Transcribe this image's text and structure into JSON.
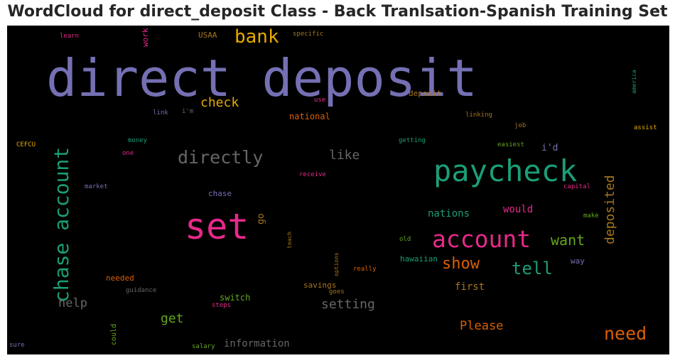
{
  "title": "WordCloud for direct_deposit Class - Back Tranlsation-Spanish Training Set",
  "chart_data": {
    "type": "wordcloud",
    "background": "#000000",
    "words": [
      {
        "text": "direct deposit",
        "color": "#7570b3",
        "vertical": false
      },
      {
        "text": "set",
        "color": "#e7298a",
        "vertical": false
      },
      {
        "text": "paycheck",
        "color": "#1b9e77",
        "vertical": false
      },
      {
        "text": "account",
        "color": "#e7298a",
        "vertical": false
      },
      {
        "text": "chase account",
        "color": "#1b9e77",
        "vertical": true
      },
      {
        "text": "bank",
        "color": "#e6ab02",
        "vertical": false
      },
      {
        "text": "directly",
        "color": "#666666",
        "vertical": false
      },
      {
        "text": "need",
        "color": "#d95f02",
        "vertical": false
      },
      {
        "text": "tell",
        "color": "#1b9e77",
        "vertical": false
      },
      {
        "text": "show",
        "color": "#d95f02",
        "vertical": false
      },
      {
        "text": "want",
        "color": "#66a61e",
        "vertical": false
      },
      {
        "text": "like",
        "color": "#666666",
        "vertical": false
      },
      {
        "text": "check",
        "color": "#e6ab02",
        "vertical": false
      },
      {
        "text": "deposited",
        "color": "#a6761d",
        "vertical": true
      },
      {
        "text": "setting",
        "color": "#666666",
        "vertical": false
      },
      {
        "text": "help",
        "color": "#666666",
        "vertical": false
      },
      {
        "text": "get",
        "color": "#66a61e",
        "vertical": false
      },
      {
        "text": "Please",
        "color": "#d95f02",
        "vertical": false
      },
      {
        "text": "information",
        "color": "#666666",
        "vertical": false
      },
      {
        "text": "nations",
        "color": "#1b9e77",
        "vertical": false
      },
      {
        "text": "would",
        "color": "#e7298a",
        "vertical": false
      },
      {
        "text": "i'd",
        "color": "#7570b3",
        "vertical": false
      },
      {
        "text": "first",
        "color": "#a6761d",
        "vertical": false
      },
      {
        "text": "chase",
        "color": "#7570b3",
        "vertical": false
      },
      {
        "text": "go",
        "color": "#a6761d",
        "vertical": true
      },
      {
        "text": "national",
        "color": "#d95f02",
        "vertical": false
      },
      {
        "text": "USAA",
        "color": "#a6761d",
        "vertical": false
      },
      {
        "text": "work",
        "color": "#e7298a",
        "vertical": true
      },
      {
        "text": "deposit",
        "color": "#a6761d",
        "vertical": false
      },
      {
        "text": "switch",
        "color": "#66a61e",
        "vertical": false
      },
      {
        "text": "savings",
        "color": "#a6761d",
        "vertical": false
      },
      {
        "text": "hawaiian",
        "color": "#1b9e77",
        "vertical": false
      },
      {
        "text": "needed",
        "color": "#d95f02",
        "vertical": false
      },
      {
        "text": "could",
        "color": "#66a61e",
        "vertical": true
      },
      {
        "text": "way",
        "color": "#7570b3",
        "vertical": false
      },
      {
        "text": "specific",
        "color": "#a6761d",
        "vertical": false
      },
      {
        "text": "learn",
        "color": "#e7298a",
        "vertical": false
      },
      {
        "text": "link",
        "color": "#7570b3",
        "vertical": false
      },
      {
        "text": "i'm",
        "color": "#666666",
        "vertical": false
      },
      {
        "text": "use",
        "color": "#e7298a",
        "vertical": false
      },
      {
        "text": "linking",
        "color": "#a6761d",
        "vertical": false
      },
      {
        "text": "job",
        "color": "#a6761d",
        "vertical": false
      },
      {
        "text": "america",
        "color": "#1b9e77",
        "vertical": true
      },
      {
        "text": "assist",
        "color": "#e6ab02",
        "vertical": false
      },
      {
        "text": "CEFCU",
        "color": "#e6ab02",
        "vertical": false
      },
      {
        "text": "money",
        "color": "#1b9e77",
        "vertical": false
      },
      {
        "text": "one",
        "color": "#e7298a",
        "vertical": false
      },
      {
        "text": "getting",
        "color": "#1b9e77",
        "vertical": false
      },
      {
        "text": "easiest",
        "color": "#66a61e",
        "vertical": false
      },
      {
        "text": "receive",
        "color": "#e7298a",
        "vertical": false
      },
      {
        "text": "market",
        "color": "#7570b3",
        "vertical": false
      },
      {
        "text": "capital",
        "color": "#e7298a",
        "vertical": false
      },
      {
        "text": "make",
        "color": "#66a61e",
        "vertical": false
      },
      {
        "text": "teach",
        "color": "#a6761d",
        "vertical": true
      },
      {
        "text": "options",
        "color": "#a6761d",
        "vertical": true
      },
      {
        "text": "old",
        "color": "#66a61e",
        "vertical": false
      },
      {
        "text": "really",
        "color": "#d95f02",
        "vertical": false
      },
      {
        "text": "goes",
        "color": "#a6761d",
        "vertical": false
      },
      {
        "text": "guidance",
        "color": "#666666",
        "vertical": false
      },
      {
        "text": "steps",
        "color": "#e7298a",
        "vertical": false
      },
      {
        "text": "sure",
        "color": "#7570b3",
        "vertical": false
      },
      {
        "text": "salary",
        "color": "#66a61e",
        "vertical": false
      }
    ]
  }
}
